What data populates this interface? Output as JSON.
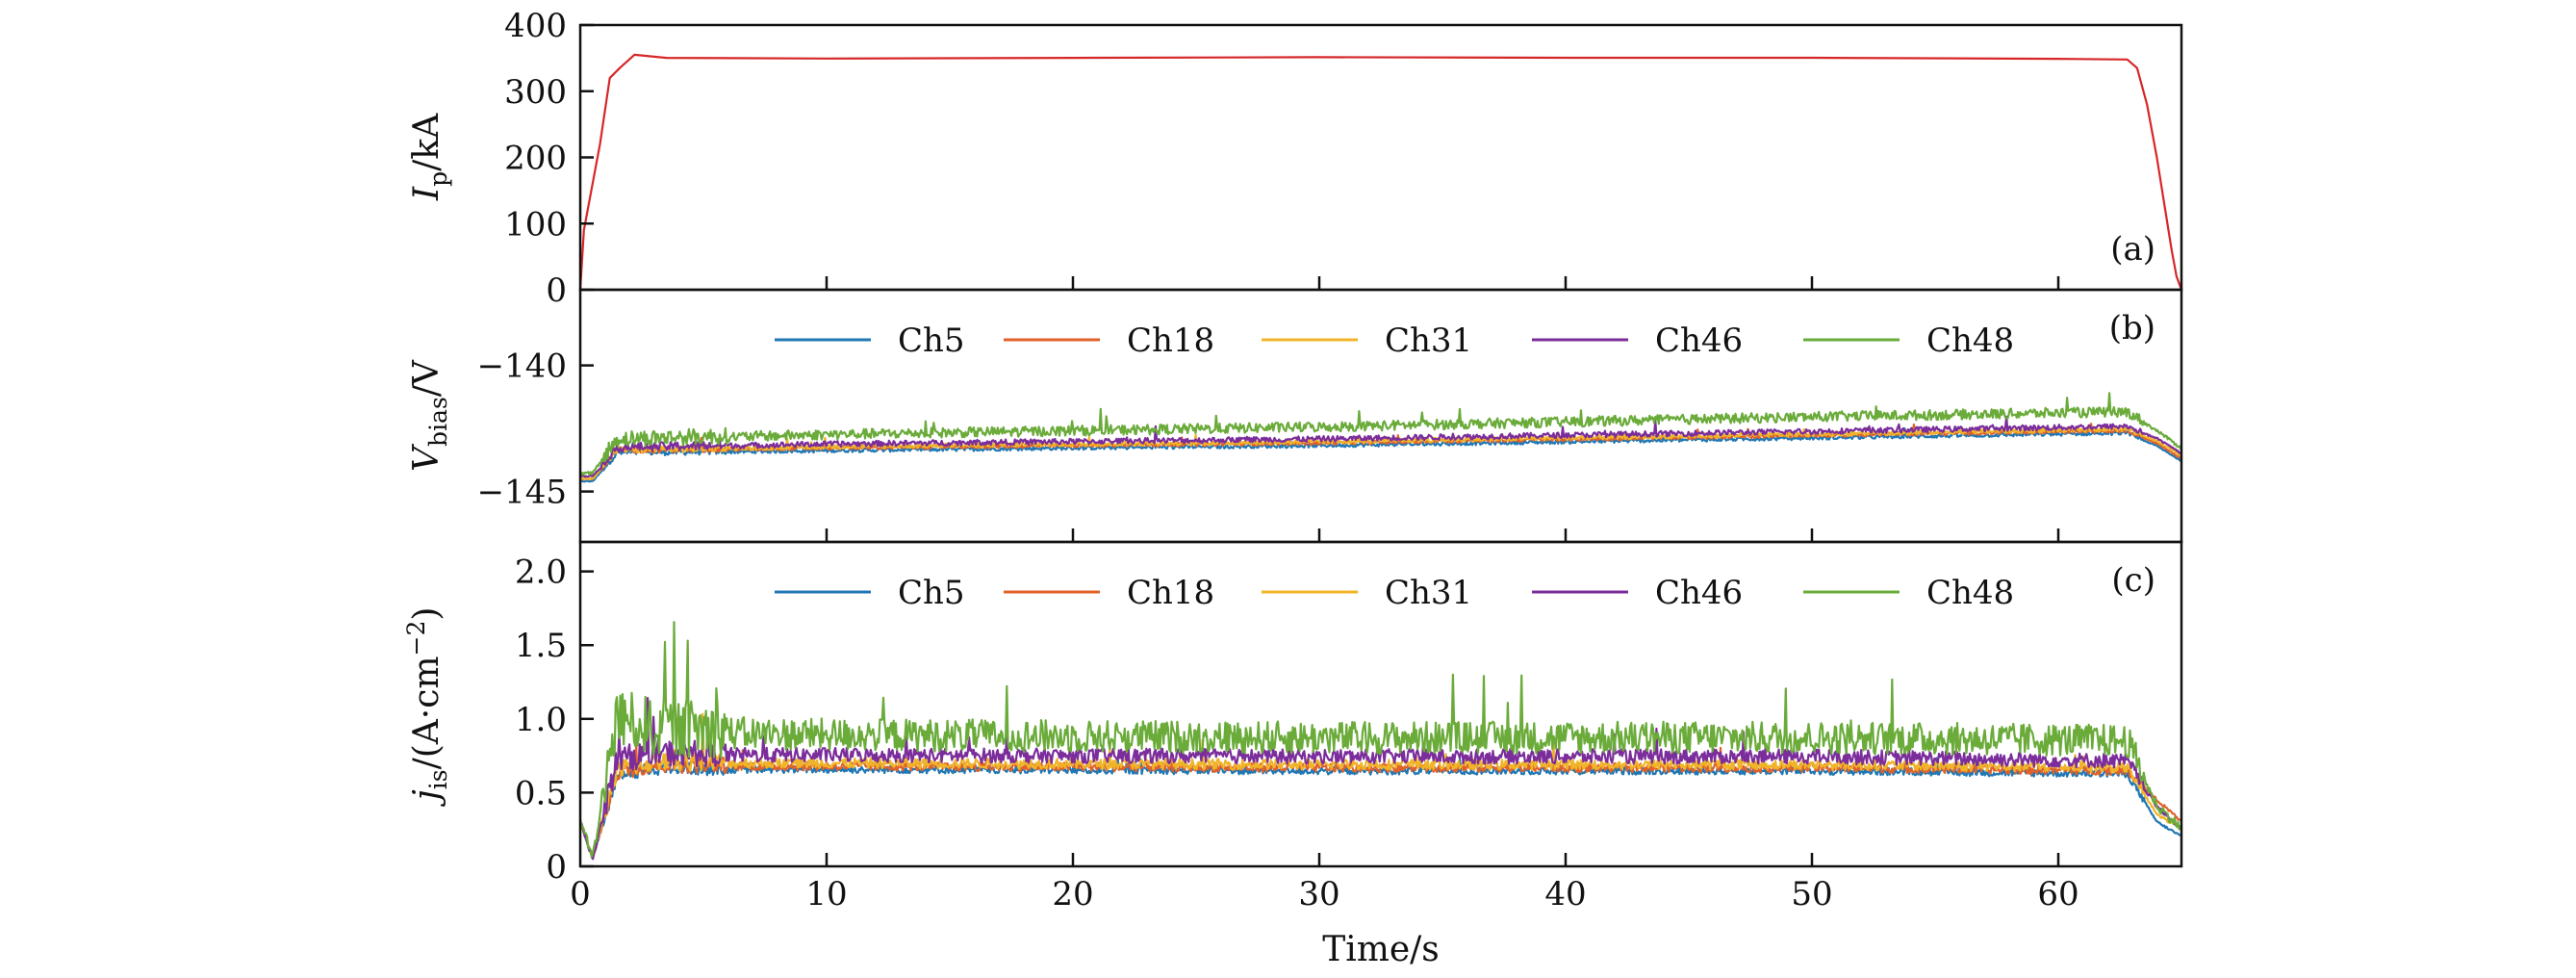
{
  "chart_data": [
    {
      "panel": "(a)",
      "type": "line",
      "ylabel_main": "I",
      "ylabel_sub": "p",
      "ylabel_unit": "/kA",
      "xlim": [
        0,
        65
      ],
      "ylim": [
        0,
        400
      ],
      "yticks": [
        0,
        100,
        200,
        300,
        400
      ],
      "xticks": [
        10,
        20,
        30,
        40,
        50,
        60
      ],
      "series": [
        {
          "name": "Ip",
          "color": "#d62728",
          "x": [
            0,
            0.15,
            0.4,
            0.8,
            1.2,
            1.6,
            2.2,
            3.5,
            10,
            20,
            30,
            40,
            50,
            60,
            62.8,
            63.2,
            63.6,
            64.0,
            64.3,
            64.6,
            64.8,
            65.0
          ],
          "y": [
            0,
            90,
            140,
            220,
            320,
            335,
            355,
            350,
            350,
            350,
            350,
            350,
            350,
            350,
            348,
            335,
            280,
            200,
            130,
            60,
            20,
            0
          ]
        }
      ]
    },
    {
      "panel": "(b)",
      "type": "line",
      "ylabel_main": "V",
      "ylabel_sub": "bias",
      "ylabel_unit": "/V",
      "xlim": [
        0,
        65
      ],
      "ylim": [
        -147,
        -137
      ],
      "yticks": [
        -145,
        -140
      ],
      "ytick_labels": [
        "−145",
        "−140"
      ],
      "xticks": [
        10,
        20,
        30,
        40,
        50,
        60
      ],
      "legend": [
        "Ch5",
        "Ch18",
        "Ch31",
        "Ch46",
        "Ch48"
      ],
      "series": [
        {
          "name": "Ch5",
          "color": "#1f77b4",
          "base": [
            [
              0,
              -144.6
            ],
            [
              0.5,
              -144.6
            ],
            [
              1.5,
              -143.5
            ],
            [
              10,
              -143.4
            ],
            [
              30,
              -143.2
            ],
            [
              50,
              -142.9
            ],
            [
              62.8,
              -142.7
            ],
            [
              64,
              -143.2
            ],
            [
              65,
              -143.8
            ]
          ],
          "noise": 0.15
        },
        {
          "name": "Ch18",
          "color": "#e0622a",
          "base": [
            [
              0,
              -144.5
            ],
            [
              0.5,
              -144.5
            ],
            [
              1.5,
              -143.4
            ],
            [
              10,
              -143.3
            ],
            [
              30,
              -143.1
            ],
            [
              50,
              -142.8
            ],
            [
              62.8,
              -142.6
            ],
            [
              64,
              -143.1
            ],
            [
              65,
              -143.7
            ]
          ],
          "noise": 0.15
        },
        {
          "name": "Ch31",
          "color": "#f0b429",
          "base": [
            [
              0,
              -144.5
            ],
            [
              0.5,
              -144.5
            ],
            [
              1.5,
              -143.4
            ],
            [
              10,
              -143.25
            ],
            [
              30,
              -143.05
            ],
            [
              50,
              -142.75
            ],
            [
              62.8,
              -142.55
            ],
            [
              64,
              -143.0
            ],
            [
              65,
              -143.6
            ]
          ],
          "noise": 0.18
        },
        {
          "name": "Ch46",
          "color": "#7b2d9b",
          "base": [
            [
              0,
              -144.4
            ],
            [
              0.5,
              -144.4
            ],
            [
              1.5,
              -143.3
            ],
            [
              10,
              -143.15
            ],
            [
              30,
              -142.95
            ],
            [
              50,
              -142.65
            ],
            [
              62.8,
              -142.45
            ],
            [
              64,
              -142.9
            ],
            [
              65,
              -143.5
            ]
          ],
          "noise": 0.22
        },
        {
          "name": "Ch48",
          "color": "#6aab3a",
          "base": [
            [
              0,
              -144.3
            ],
            [
              0.5,
              -144.3
            ],
            [
              1.5,
              -143.0
            ],
            [
              10,
              -142.8
            ],
            [
              30,
              -142.5
            ],
            [
              50,
              -142.1
            ],
            [
              62.8,
              -141.9
            ],
            [
              64,
              -142.6
            ],
            [
              65,
              -143.3
            ]
          ],
          "noise": 0.4
        }
      ]
    },
    {
      "panel": "(c)",
      "type": "line",
      "ylabel_main": "j",
      "ylabel_sub": "is",
      "ylabel_unit": "/(A·cm",
      "ylabel_sup": "−2",
      "ylabel_close": ")",
      "xlim": [
        0,
        65
      ],
      "ylim": [
        0,
        2.2
      ],
      "yticks": [
        0,
        0.5,
        1.0,
        1.5,
        2.0
      ],
      "ytick_labels": [
        "0",
        "0.5",
        "1.0",
        "1.5",
        "2.0"
      ],
      "xticks": [
        0,
        10,
        20,
        30,
        40,
        50,
        60
      ],
      "xlabel": "Time/s",
      "legend": [
        "Ch5",
        "Ch18",
        "Ch31",
        "Ch46",
        "Ch48"
      ],
      "series": [
        {
          "name": "Ch5",
          "color": "#1f77b4",
          "base": [
            [
              0,
              0.3
            ],
            [
              0.5,
              0.05
            ],
            [
              1.5,
              0.6
            ],
            [
              3,
              0.65
            ],
            [
              10,
              0.65
            ],
            [
              30,
              0.64
            ],
            [
              50,
              0.64
            ],
            [
              62.8,
              0.62
            ],
            [
              64,
              0.3
            ],
            [
              65,
              0.2
            ]
          ],
          "noise": 0.05
        },
        {
          "name": "Ch18",
          "color": "#e0622a",
          "base": [
            [
              0,
              0.3
            ],
            [
              0.5,
              0.05
            ],
            [
              1.5,
              0.62
            ],
            [
              3,
              0.67
            ],
            [
              10,
              0.67
            ],
            [
              30,
              0.66
            ],
            [
              50,
              0.66
            ],
            [
              62.8,
              0.64
            ],
            [
              64,
              0.45
            ],
            [
              65,
              0.3
            ]
          ],
          "noise": 0.06
        },
        {
          "name": "Ch31",
          "color": "#f0b429",
          "base": [
            [
              0,
              0.3
            ],
            [
              0.5,
              0.05
            ],
            [
              1.5,
              0.64
            ],
            [
              3,
              0.69
            ],
            [
              10,
              0.69
            ],
            [
              30,
              0.68
            ],
            [
              50,
              0.68
            ],
            [
              62.8,
              0.66
            ],
            [
              64,
              0.35
            ],
            [
              65,
              0.25
            ]
          ],
          "noise": 0.07
        },
        {
          "name": "Ch46",
          "color": "#7b2d9b",
          "base": [
            [
              0,
              0.3
            ],
            [
              0.5,
              0.05
            ],
            [
              1.5,
              0.7
            ],
            [
              3,
              0.74
            ],
            [
              10,
              0.74
            ],
            [
              30,
              0.73
            ],
            [
              50,
              0.73
            ],
            [
              62.8,
              0.7
            ],
            [
              64,
              0.4
            ],
            [
              65,
              0.25
            ]
          ],
          "noise": 0.1
        },
        {
          "name": "Ch48",
          "color": "#6aab3a",
          "base": [
            [
              0,
              0.3
            ],
            [
              0.5,
              0.05
            ],
            [
              1.5,
              0.95
            ],
            [
              3,
              0.88
            ],
            [
              10,
              0.86
            ],
            [
              30,
              0.84
            ],
            [
              50,
              0.84
            ],
            [
              62.8,
              0.82
            ],
            [
              64,
              0.4
            ],
            [
              65,
              0.25
            ]
          ],
          "noise": 0.22
        }
      ]
    }
  ]
}
